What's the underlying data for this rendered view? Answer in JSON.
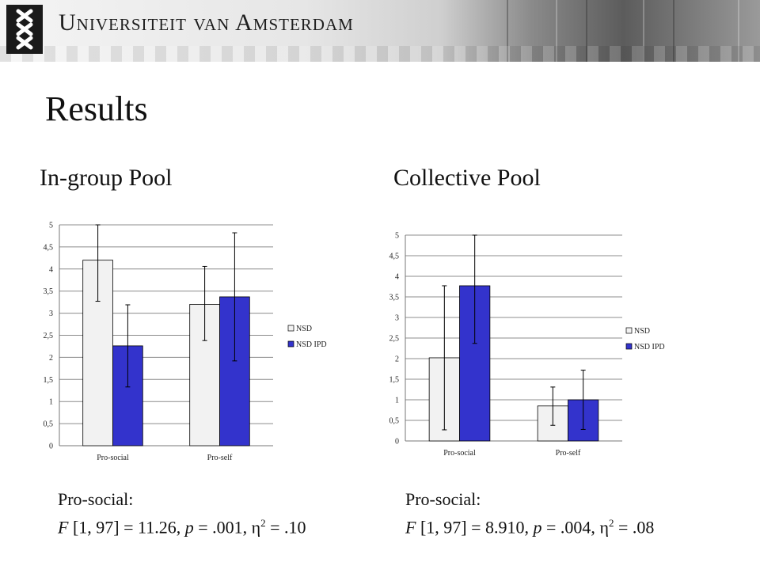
{
  "header": {
    "university_name": "Universiteit van Amsterdam",
    "logo_icon": "xxx-shield-icon"
  },
  "slide": {
    "title": "Results"
  },
  "panels": [
    {
      "title": "In-group Pool",
      "stats": {
        "label": "Pro-social:",
        "F": "F",
        "df": "[1, 97] = 11.26,",
        "p": "p",
        "p_value": "= .001,",
        "eta": "η",
        "eta_sup": "2",
        "eta_value": "= .10"
      }
    },
    {
      "title": "Collective Pool",
      "stats": {
        "label": "Pro-social:",
        "F": "F",
        "df": "[1, 97] = 8.910,",
        "p": "p",
        "p_value": "= .004,",
        "eta": "η",
        "eta_sup": "2",
        "eta_value": "= .08"
      }
    }
  ],
  "chart_data": [
    {
      "type": "bar",
      "categories": [
        "Pro-social",
        "Pro-self"
      ],
      "series": [
        {
          "name": "NSD",
          "values": [
            4.2,
            3.2
          ],
          "error_low": [
            3.27,
            2.38
          ],
          "error_high": [
            5.0,
            4.06
          ],
          "color": "#f2f2f2"
        },
        {
          "name": "NSD IPD",
          "values": [
            2.26,
            3.37
          ],
          "error_low": [
            1.33,
            1.92
          ],
          "error_high": [
            3.19,
            4.82
          ],
          "color": "#3333cc"
        }
      ],
      "yticks": [
        "0",
        "0,5",
        "1",
        "1,5",
        "2",
        "2,5",
        "3",
        "3,5",
        "4",
        "4,5",
        "5"
      ],
      "ylim": [
        0,
        5
      ],
      "grid": true,
      "legend": "right"
    },
    {
      "type": "bar",
      "categories": [
        "Pro-social",
        "Pro-self"
      ],
      "series": [
        {
          "name": "NSD",
          "values": [
            2.02,
            0.85
          ],
          "error_low": [
            0.27,
            0.38
          ],
          "error_high": [
            3.77,
            1.31
          ],
          "color": "#f2f2f2"
        },
        {
          "name": "NSD IPD",
          "values": [
            3.77,
            1.0
          ],
          "error_low": [
            2.37,
            0.28
          ],
          "error_high": [
            5.0,
            1.72
          ],
          "color": "#3333cc"
        }
      ],
      "yticks": [
        "0",
        "0,5",
        "1",
        "1,5",
        "2",
        "2,5",
        "3",
        "3,5",
        "4",
        "4,5",
        "5"
      ],
      "ylim": [
        0,
        5
      ],
      "grid": true,
      "legend": "right"
    }
  ]
}
